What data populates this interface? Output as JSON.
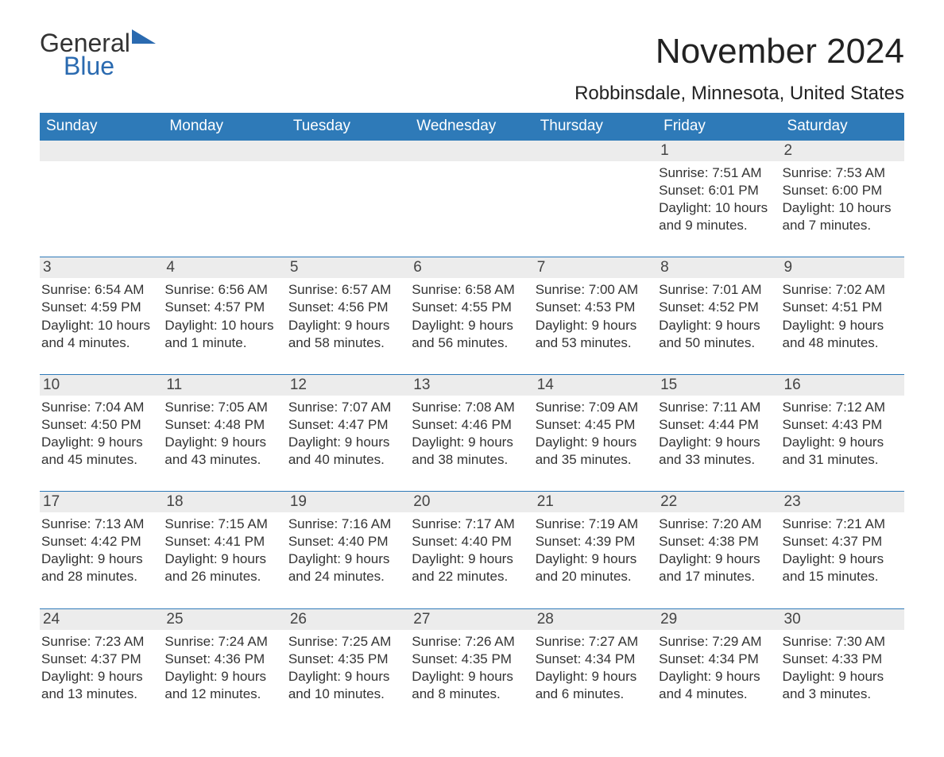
{
  "logo": {
    "word1": "General",
    "word2": "Blue"
  },
  "title": "November 2024",
  "location": "Robbinsdale, Minnesota, United States",
  "colors": {
    "brand_blue": "#2e7ab8",
    "band_grey": "#ececec",
    "text": "#333333",
    "bg": "#ffffff"
  },
  "days_of_week": [
    "Sunday",
    "Monday",
    "Tuesday",
    "Wednesday",
    "Thursday",
    "Friday",
    "Saturday"
  ],
  "weeks": [
    [
      {
        "n": "",
        "sr": "",
        "ss": "",
        "dl1": "",
        "dl2": ""
      },
      {
        "n": "",
        "sr": "",
        "ss": "",
        "dl1": "",
        "dl2": ""
      },
      {
        "n": "",
        "sr": "",
        "ss": "",
        "dl1": "",
        "dl2": ""
      },
      {
        "n": "",
        "sr": "",
        "ss": "",
        "dl1": "",
        "dl2": ""
      },
      {
        "n": "",
        "sr": "",
        "ss": "",
        "dl1": "",
        "dl2": ""
      },
      {
        "n": "1",
        "sr": "Sunrise: 7:51 AM",
        "ss": "Sunset: 6:01 PM",
        "dl1": "Daylight: 10 hours",
        "dl2": "and 9 minutes."
      },
      {
        "n": "2",
        "sr": "Sunrise: 7:53 AM",
        "ss": "Sunset: 6:00 PM",
        "dl1": "Daylight: 10 hours",
        "dl2": "and 7 minutes."
      }
    ],
    [
      {
        "n": "3",
        "sr": "Sunrise: 6:54 AM",
        "ss": "Sunset: 4:59 PM",
        "dl1": "Daylight: 10 hours",
        "dl2": "and 4 minutes."
      },
      {
        "n": "4",
        "sr": "Sunrise: 6:56 AM",
        "ss": "Sunset: 4:57 PM",
        "dl1": "Daylight: 10 hours",
        "dl2": "and 1 minute."
      },
      {
        "n": "5",
        "sr": "Sunrise: 6:57 AM",
        "ss": "Sunset: 4:56 PM",
        "dl1": "Daylight: 9 hours",
        "dl2": "and 58 minutes."
      },
      {
        "n": "6",
        "sr": "Sunrise: 6:58 AM",
        "ss": "Sunset: 4:55 PM",
        "dl1": "Daylight: 9 hours",
        "dl2": "and 56 minutes."
      },
      {
        "n": "7",
        "sr": "Sunrise: 7:00 AM",
        "ss": "Sunset: 4:53 PM",
        "dl1": "Daylight: 9 hours",
        "dl2": "and 53 minutes."
      },
      {
        "n": "8",
        "sr": "Sunrise: 7:01 AM",
        "ss": "Sunset: 4:52 PM",
        "dl1": "Daylight: 9 hours",
        "dl2": "and 50 minutes."
      },
      {
        "n": "9",
        "sr": "Sunrise: 7:02 AM",
        "ss": "Sunset: 4:51 PM",
        "dl1": "Daylight: 9 hours",
        "dl2": "and 48 minutes."
      }
    ],
    [
      {
        "n": "10",
        "sr": "Sunrise: 7:04 AM",
        "ss": "Sunset: 4:50 PM",
        "dl1": "Daylight: 9 hours",
        "dl2": "and 45 minutes."
      },
      {
        "n": "11",
        "sr": "Sunrise: 7:05 AM",
        "ss": "Sunset: 4:48 PM",
        "dl1": "Daylight: 9 hours",
        "dl2": "and 43 minutes."
      },
      {
        "n": "12",
        "sr": "Sunrise: 7:07 AM",
        "ss": "Sunset: 4:47 PM",
        "dl1": "Daylight: 9 hours",
        "dl2": "and 40 minutes."
      },
      {
        "n": "13",
        "sr": "Sunrise: 7:08 AM",
        "ss": "Sunset: 4:46 PM",
        "dl1": "Daylight: 9 hours",
        "dl2": "and 38 minutes."
      },
      {
        "n": "14",
        "sr": "Sunrise: 7:09 AM",
        "ss": "Sunset: 4:45 PM",
        "dl1": "Daylight: 9 hours",
        "dl2": "and 35 minutes."
      },
      {
        "n": "15",
        "sr": "Sunrise: 7:11 AM",
        "ss": "Sunset: 4:44 PM",
        "dl1": "Daylight: 9 hours",
        "dl2": "and 33 minutes."
      },
      {
        "n": "16",
        "sr": "Sunrise: 7:12 AM",
        "ss": "Sunset: 4:43 PM",
        "dl1": "Daylight: 9 hours",
        "dl2": "and 31 minutes."
      }
    ],
    [
      {
        "n": "17",
        "sr": "Sunrise: 7:13 AM",
        "ss": "Sunset: 4:42 PM",
        "dl1": "Daylight: 9 hours",
        "dl2": "and 28 minutes."
      },
      {
        "n": "18",
        "sr": "Sunrise: 7:15 AM",
        "ss": "Sunset: 4:41 PM",
        "dl1": "Daylight: 9 hours",
        "dl2": "and 26 minutes."
      },
      {
        "n": "19",
        "sr": "Sunrise: 7:16 AM",
        "ss": "Sunset: 4:40 PM",
        "dl1": "Daylight: 9 hours",
        "dl2": "and 24 minutes."
      },
      {
        "n": "20",
        "sr": "Sunrise: 7:17 AM",
        "ss": "Sunset: 4:40 PM",
        "dl1": "Daylight: 9 hours",
        "dl2": "and 22 minutes."
      },
      {
        "n": "21",
        "sr": "Sunrise: 7:19 AM",
        "ss": "Sunset: 4:39 PM",
        "dl1": "Daylight: 9 hours",
        "dl2": "and 20 minutes."
      },
      {
        "n": "22",
        "sr": "Sunrise: 7:20 AM",
        "ss": "Sunset: 4:38 PM",
        "dl1": "Daylight: 9 hours",
        "dl2": "and 17 minutes."
      },
      {
        "n": "23",
        "sr": "Sunrise: 7:21 AM",
        "ss": "Sunset: 4:37 PM",
        "dl1": "Daylight: 9 hours",
        "dl2": "and 15 minutes."
      }
    ],
    [
      {
        "n": "24",
        "sr": "Sunrise: 7:23 AM",
        "ss": "Sunset: 4:37 PM",
        "dl1": "Daylight: 9 hours",
        "dl2": "and 13 minutes."
      },
      {
        "n": "25",
        "sr": "Sunrise: 7:24 AM",
        "ss": "Sunset: 4:36 PM",
        "dl1": "Daylight: 9 hours",
        "dl2": "and 12 minutes."
      },
      {
        "n": "26",
        "sr": "Sunrise: 7:25 AM",
        "ss": "Sunset: 4:35 PM",
        "dl1": "Daylight: 9 hours",
        "dl2": "and 10 minutes."
      },
      {
        "n": "27",
        "sr": "Sunrise: 7:26 AM",
        "ss": "Sunset: 4:35 PM",
        "dl1": "Daylight: 9 hours",
        "dl2": "and 8 minutes."
      },
      {
        "n": "28",
        "sr": "Sunrise: 7:27 AM",
        "ss": "Sunset: 4:34 PM",
        "dl1": "Daylight: 9 hours",
        "dl2": "and 6 minutes."
      },
      {
        "n": "29",
        "sr": "Sunrise: 7:29 AM",
        "ss": "Sunset: 4:34 PM",
        "dl1": "Daylight: 9 hours",
        "dl2": "and 4 minutes."
      },
      {
        "n": "30",
        "sr": "Sunrise: 7:30 AM",
        "ss": "Sunset: 4:33 PM",
        "dl1": "Daylight: 9 hours",
        "dl2": "and 3 minutes."
      }
    ]
  ]
}
